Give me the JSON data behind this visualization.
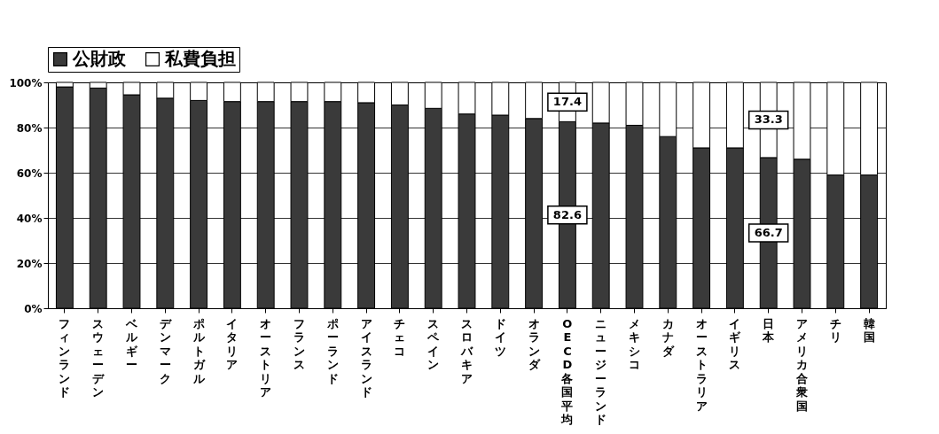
{
  "chart_data": {
    "type": "bar",
    "stacked": true,
    "categories": [
      "フィンランド",
      "スウェーデン",
      "ベルギー",
      "デンマーク",
      "ポルトガル",
      "イタリア",
      "オーストリア",
      "フランス",
      "ポーランド",
      "アイスランド",
      "チェコ",
      "スペイン",
      "スロバキア",
      "ドイツ",
      "オランダ",
      "OECD各国平均",
      "ニュージーランド",
      "メキシコ",
      "カナダ",
      "オーストラリア",
      "イギリス",
      "日本",
      "アメリカ合衆国",
      "チリ",
      "韓国"
    ],
    "series": [
      {
        "name": "公財政",
        "color": "#3a3a3a",
        "values": [
          98,
          97.5,
          94.5,
          93,
          92,
          91.5,
          91.5,
          91.5,
          91.5,
          91,
          90,
          88.5,
          86,
          85.5,
          84,
          82.6,
          82,
          81,
          76,
          71,
          71,
          66.7,
          66,
          59,
          59
        ],
        "value_labels": [
          null,
          null,
          null,
          null,
          null,
          null,
          null,
          null,
          null,
          null,
          null,
          null,
          null,
          null,
          null,
          "82.6",
          null,
          null,
          null,
          null,
          null,
          "66.7",
          null,
          null,
          null
        ]
      },
      {
        "name": "私費負担",
        "color": "#ffffff",
        "values": [
          2,
          2.5,
          5.5,
          7,
          8,
          8.5,
          8.5,
          8.5,
          8.5,
          9,
          10,
          11.5,
          14,
          14.5,
          16,
          17.4,
          18,
          19,
          24,
          29,
          29,
          33.3,
          34,
          41,
          41
        ],
        "value_labels": [
          null,
          null,
          null,
          null,
          null,
          null,
          null,
          null,
          null,
          null,
          null,
          null,
          null,
          null,
          null,
          "17.4",
          null,
          null,
          null,
          null,
          null,
          "33.3",
          null,
          null,
          null
        ]
      }
    ],
    "ylim": [
      0,
      100
    ],
    "yticks": [
      {
        "value": 0,
        "label": "0%"
      },
      {
        "value": 20,
        "label": "20%"
      },
      {
        "value": 40,
        "label": "40%"
      },
      {
        "value": 60,
        "label": "60%"
      },
      {
        "value": 80,
        "label": "80%"
      },
      {
        "value": 100,
        "label": "100%"
      }
    ],
    "grid": "y",
    "legend": "top left"
  }
}
